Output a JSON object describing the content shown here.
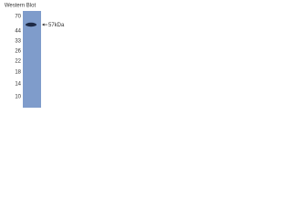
{
  "title": "Western Blot",
  "markers": [
    70,
    44,
    33,
    26,
    22,
    18,
    14,
    10
  ],
  "band_label": "57kDa"
}
